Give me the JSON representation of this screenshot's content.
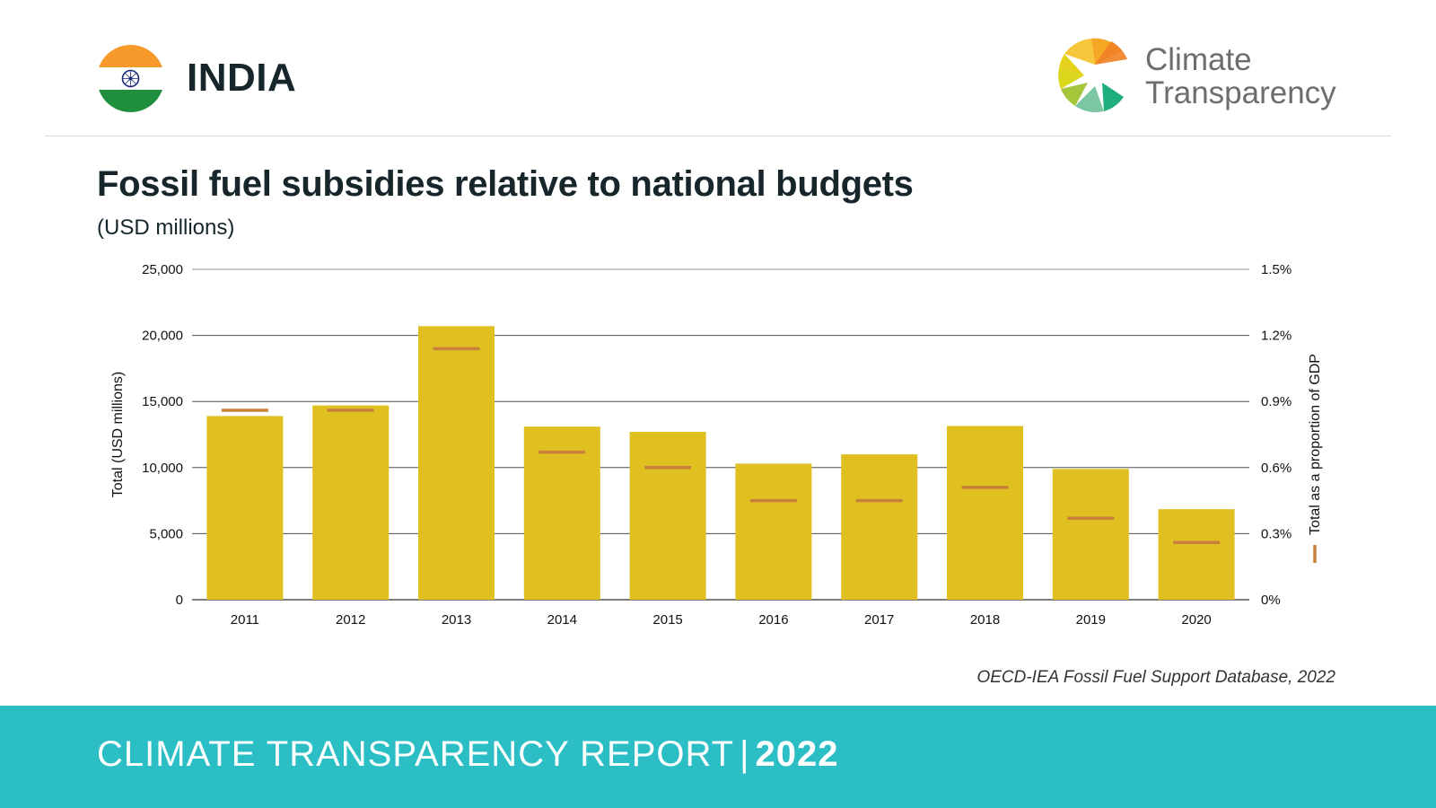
{
  "header": {
    "country": "INDIA",
    "logo_line1": "Climate",
    "logo_line2": "Transparency"
  },
  "chart_title": "Fossil fuel subsidies relative to national budgets",
  "chart_subtitle": "(USD millions)",
  "source": "OECD-IEA Fossil Fuel Support Database, 2022",
  "footer": {
    "report_label": "CLIMATE TRANSPARENCY REPORT",
    "separator": "|",
    "year": "2022"
  },
  "colors": {
    "bar": "#e0c020",
    "marker": "#c8803a",
    "footer_bg": "#2bbfc5",
    "gridline": "#333333"
  },
  "chart_data": {
    "type": "bar",
    "categories": [
      "2011",
      "2012",
      "2013",
      "2014",
      "2015",
      "2016",
      "2017",
      "2018",
      "2019",
      "2020"
    ],
    "series": [
      {
        "axis": "left",
        "mark": "bar",
        "values": [
          13900,
          14700,
          20700,
          13100,
          12700,
          10300,
          11000,
          13150,
          9900,
          6850
        ]
      },
      {
        "name": "Total as a proportion of GDP",
        "axis": "right",
        "mark": "dash",
        "unit": "%",
        "values": [
          0.86,
          0.86,
          1.14,
          0.67,
          0.6,
          0.45,
          0.45,
          0.51,
          0.37,
          0.26
        ]
      }
    ],
    "ylabel": "Total (USD millions)",
    "ylabel_right": "Total as a proportion of GDP",
    "ylim": [
      0,
      25000
    ],
    "ylim_right": [
      0,
      1.5
    ],
    "yticks": [
      {
        "value": 0,
        "label": "0"
      },
      {
        "value": 5000,
        "label": "5,000"
      },
      {
        "value": 10000,
        "label": "10,000"
      },
      {
        "value": 15000,
        "label": "15,000"
      },
      {
        "value": 20000,
        "label": "20,000"
      },
      {
        "value": 25000,
        "label": "25,000"
      }
    ],
    "yticks_right": [
      {
        "value": 0,
        "label": "0%"
      },
      {
        "value": 0.3,
        "label": "0.3%"
      },
      {
        "value": 0.6,
        "label": "0.6%"
      },
      {
        "value": 0.9,
        "label": "0.9%"
      },
      {
        "value": 1.2,
        "label": "1.2%"
      },
      {
        "value": 1.5,
        "label": "1.5%"
      }
    ],
    "grid": true,
    "legend": "right-axis"
  }
}
